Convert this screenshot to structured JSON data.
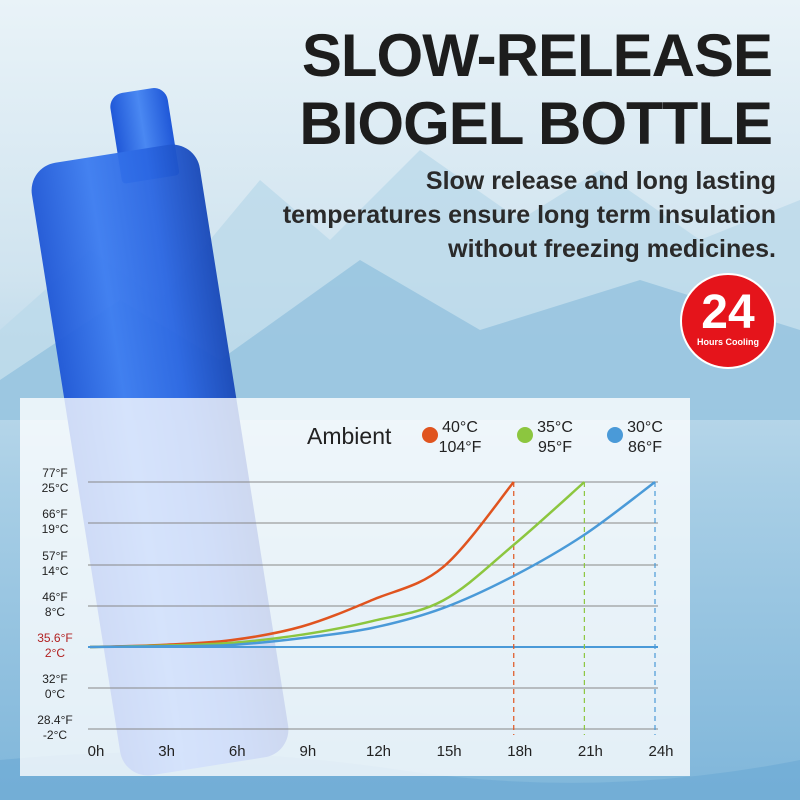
{
  "header": {
    "title_line1": "SLOW-RELEASE",
    "title_line2": "BIOGEL BOTTLE",
    "subtitle_lines": [
      "Slow release and long lasting",
      "temperatures ensure long term insulation",
      "without freezing medicines."
    ]
  },
  "badge": {
    "number": "24",
    "text": "Hours Cooling",
    "color": "#e5141b"
  },
  "chart_data": {
    "type": "line",
    "legend_title": "Ambient",
    "legend_placement": "top-right",
    "x": [
      0,
      3,
      6,
      9,
      12,
      15,
      18,
      21,
      24
    ],
    "x_tick_labels": [
      "0h",
      "3h",
      "6h",
      "9h",
      "12h",
      "15h",
      "18h",
      "21h",
      "24h"
    ],
    "y_ticks": [
      {
        "c": 25,
        "f_label": "77°F",
        "c_label": "25°C"
      },
      {
        "c": 19,
        "f_label": "66°F",
        "c_label": "19°C"
      },
      {
        "c": 14,
        "f_label": "57°F",
        "c_label": "14°C"
      },
      {
        "c": 8,
        "f_label": "46°F",
        "c_label": "8°C"
      },
      {
        "c": 2,
        "f_label": "35.6°F",
        "c_label": "2°C",
        "highlight": "#b22222"
      },
      {
        "c": 0,
        "f_label": "32°F",
        "c_label": "0°C"
      },
      {
        "c": -2,
        "f_label": "28.4°F",
        "c_label": "-2°C"
      }
    ],
    "y_unit": "°C",
    "grid": true,
    "series": [
      {
        "name_c": "40°C",
        "name_f": "104°F",
        "color": "#e0541f",
        "x": [
          0,
          3,
          6,
          9,
          12,
          15,
          18
        ],
        "values": [
          2,
          2.3,
          3,
          5,
          8.9,
          13.7,
          25
        ]
      },
      {
        "name_c": "35°C",
        "name_f": "95°F",
        "color": "#8cc63f",
        "x": [
          0,
          3,
          6,
          9,
          12,
          15,
          18,
          21
        ],
        "values": [
          2,
          2.2,
          2.6,
          3.8,
          5.8,
          8.8,
          16.4,
          25
        ]
      },
      {
        "name_c": "30°C",
        "name_f": "86°F",
        "color": "#4a9ad8",
        "x": [
          0,
          3,
          6,
          9,
          12,
          15,
          18,
          21,
          24
        ],
        "values": [
          2,
          2.1,
          2.3,
          3.3,
          4.8,
          7.7,
          12.4,
          17.6,
          25
        ]
      }
    ]
  }
}
